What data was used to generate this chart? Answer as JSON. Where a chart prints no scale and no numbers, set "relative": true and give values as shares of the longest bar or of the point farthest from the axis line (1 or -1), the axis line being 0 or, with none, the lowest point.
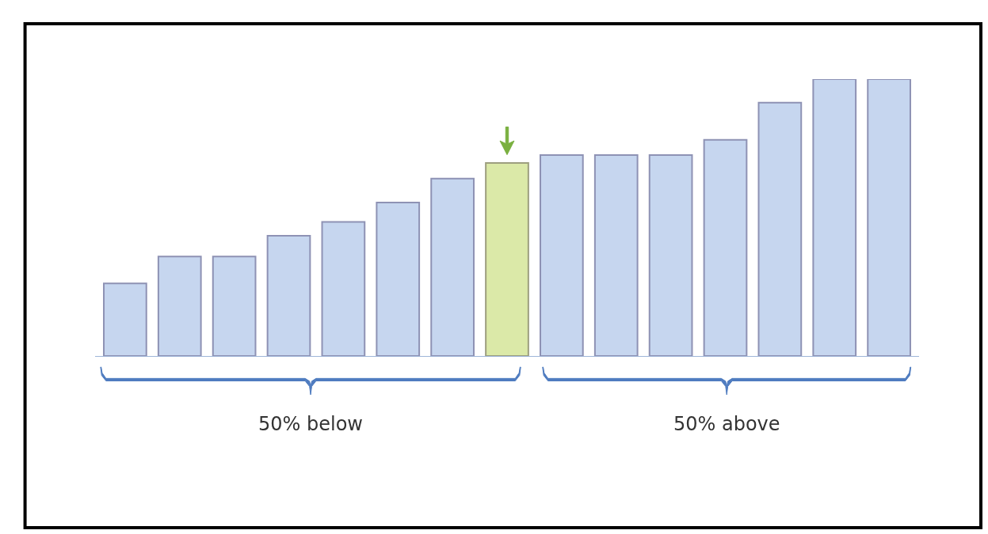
{
  "chart_data": {
    "type": "bar",
    "relative": true,
    "categories": [
      null,
      null,
      null,
      null,
      null,
      null,
      null,
      null,
      null,
      null,
      null,
      null,
      null,
      null,
      null
    ],
    "values": [
      0.262,
      0.359,
      0.359,
      0.434,
      0.484,
      0.554,
      0.641,
      0.697,
      0.726,
      0.726,
      0.726,
      0.781,
      0.915,
      1,
      1
    ],
    "colors": [
      "#c6d6ef",
      "#c6d6ef",
      "#c6d6ef",
      "#c6d6ef",
      "#c6d6ef",
      "#c6d6ef",
      "#c6d6ef",
      "#dbe9a8",
      "#c6d6ef",
      "#c6d6ef",
      "#c6d6ef",
      "#c6d6ef",
      "#c6d6ef",
      "#c6d6ef",
      "#c6d6ef"
    ],
    "annotations": [
      "50% below",
      "50% above"
    ]
  }
}
